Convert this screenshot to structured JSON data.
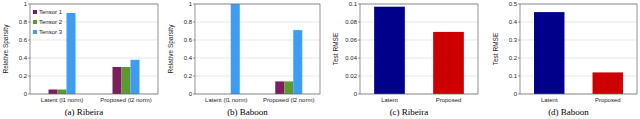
{
  "chart_data": [
    {
      "type": "bar",
      "title": "(a) Ribeira",
      "y_label": "Relative Sparsity",
      "categories": [
        "Latent (l1 norm)",
        "Proposed (l2 norm)"
      ],
      "series": [
        {
          "name": "Tensor 1",
          "color": "#7b1e5e",
          "values": [
            0.05,
            0.3
          ]
        },
        {
          "name": "Tensor 2",
          "color": "#5c9a30",
          "values": [
            0.05,
            0.3
          ]
        },
        {
          "name": "Tensor 3",
          "color": "#3d9df2",
          "values": [
            0.9,
            0.38
          ]
        }
      ],
      "ylim": [
        0,
        1
      ],
      "yticks": [
        0,
        0.2,
        0.4,
        0.6,
        0.8,
        1
      ],
      "grid": true,
      "legend": "top-left"
    },
    {
      "type": "bar",
      "title": "(b) Baboon",
      "y_label": "Relative Sparsity",
      "categories": [
        "Latent (l1 norm)",
        "Proposed (l2 norm)"
      ],
      "series": [
        {
          "color": "#7b1e5e",
          "values": [
            0,
            0.14
          ]
        },
        {
          "color": "#5c9a30",
          "values": [
            0,
            0.14
          ]
        },
        {
          "color": "#3d9df2",
          "values": [
            1,
            0.71
          ]
        }
      ],
      "ylim": [
        0,
        1
      ],
      "yticks": [
        0,
        0.2,
        0.4,
        0.6,
        0.8,
        1
      ],
      "grid": true
    },
    {
      "type": "bar",
      "title": "(c) Ribeira",
      "y_label": "Test RMSE",
      "categories": [
        "Latent",
        "Proposed"
      ],
      "values": [
        0.097,
        0.069
      ],
      "colors": [
        "#00008b",
        "#cc0000"
      ],
      "ylim": [
        0,
        0.1
      ],
      "yticks": [
        0,
        0.02,
        0.04,
        0.06,
        0.08,
        0.1
      ],
      "grid": true
    },
    {
      "type": "bar",
      "title": "(d) Baboon",
      "y_label": "Test RMSE",
      "categories": [
        "Latent",
        "Proposed"
      ],
      "values": [
        0.455,
        0.12
      ],
      "colors": [
        "#00008b",
        "#cc0000"
      ],
      "ylim": [
        0,
        0.5
      ],
      "yticks": [
        0,
        0.1,
        0.2,
        0.3,
        0.4,
        0.5
      ],
      "grid": true
    }
  ]
}
